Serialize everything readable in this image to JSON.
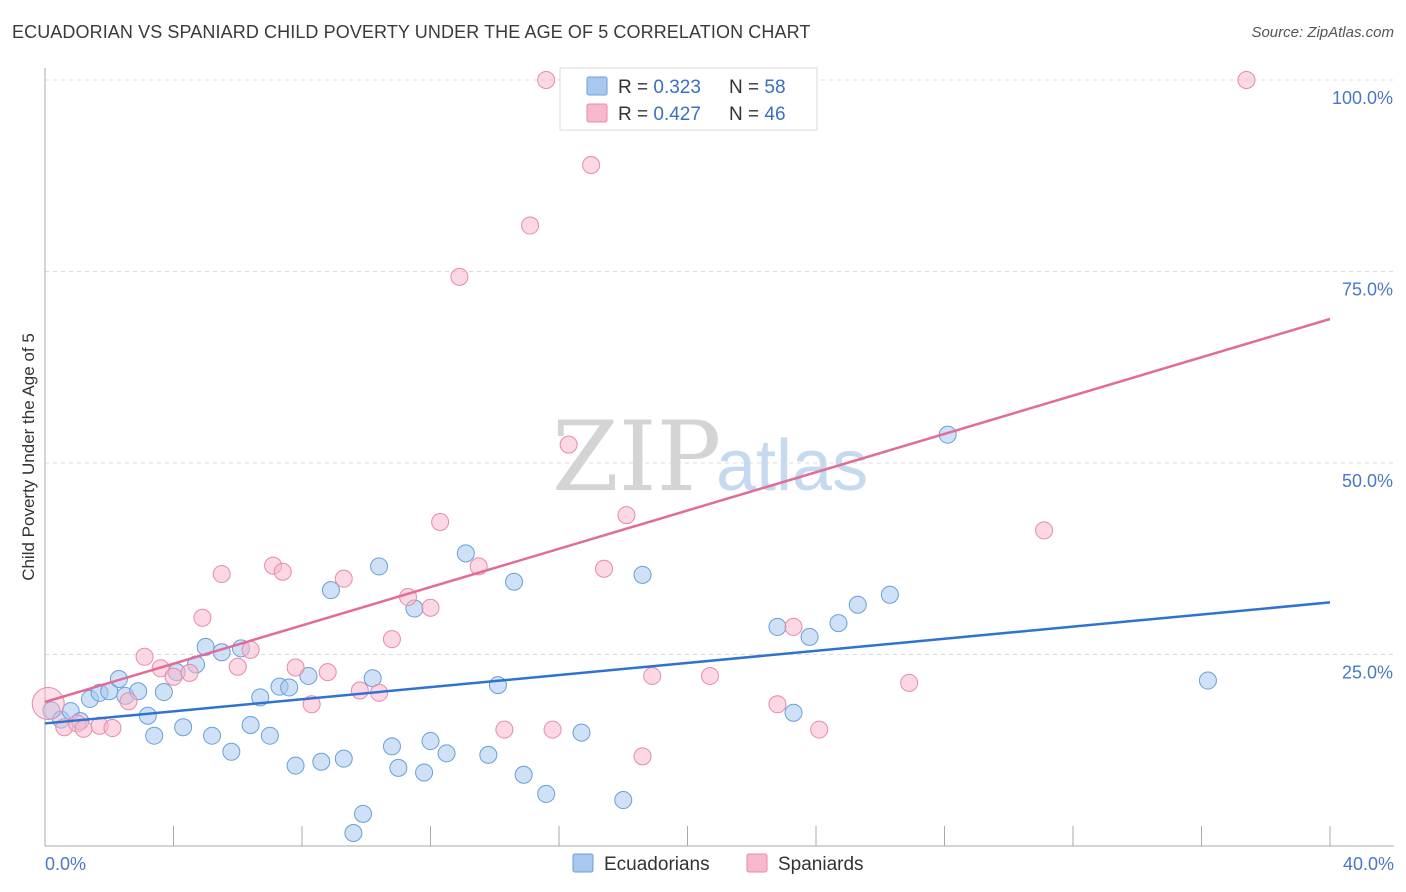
{
  "header": {
    "title": "ECUADORIAN VS SPANIARD CHILD POVERTY UNDER THE AGE OF 5 CORRELATION CHART",
    "source": "Source: ZipAtlas.com"
  },
  "watermark": {
    "zip": "ZIP",
    "atlas": "atlas"
  },
  "colors": {
    "ecuadorians_fill": "#a8c8f0",
    "ecuadorians_stroke": "#6a9ed8",
    "ecuadorians_line": "#2f72cf",
    "spaniards_fill": "#f7b8cc",
    "spaniards_stroke": "#e88aa8",
    "spaniards_line": "#e06c97"
  },
  "legend": {
    "rows": [
      {
        "r_label": "R = ",
        "r_value": "0.323",
        "n_label": "N = ",
        "n_value": "58"
      },
      {
        "r_label": "R = ",
        "r_value": "0.427",
        "n_label": "N = ",
        "n_value": "46"
      }
    ]
  },
  "chart_data": {
    "type": "scatter",
    "title": "ECUADORIAN VS SPANIARD CHILD POVERTY UNDER THE AGE OF 5 CORRELATION CHART",
    "xlabel": "",
    "ylabel": "Child Poverty Under the Age of 5",
    "xlim": [
      0,
      40
    ],
    "ylim": [
      0,
      100
    ],
    "x_tick_labels": [
      "0.0%",
      "40.0%"
    ],
    "y_ticks": [
      25,
      50,
      75,
      100
    ],
    "y_tick_labels": [
      "25.0%",
      "50.0%",
      "75.0%",
      "100.0%"
    ],
    "grid": true,
    "legend_position": "bottom-center",
    "series": [
      {
        "name": "Ecuadorians",
        "r": 0.323,
        "n": 58,
        "trend": {
          "x": [
            0,
            40
          ],
          "y": [
            16.0,
            31.8
          ]
        },
        "points": [
          [
            0.2,
            17.7
          ],
          [
            0.5,
            16.5
          ],
          [
            0.8,
            17.6
          ],
          [
            1.1,
            16.3
          ],
          [
            1.4,
            19.2
          ],
          [
            1.7,
            20.0
          ],
          [
            2.0,
            20.2
          ],
          [
            2.3,
            21.8
          ],
          [
            2.5,
            19.6
          ],
          [
            2.9,
            20.2
          ],
          [
            3.2,
            17.0
          ],
          [
            3.4,
            14.4
          ],
          [
            3.7,
            20.1
          ],
          [
            4.1,
            22.7
          ],
          [
            4.3,
            15.5
          ],
          [
            4.7,
            23.7
          ],
          [
            5.0,
            26.0
          ],
          [
            5.2,
            14.4
          ],
          [
            5.5,
            25.3
          ],
          [
            5.8,
            12.3
          ],
          [
            6.1,
            25.8
          ],
          [
            6.4,
            15.8
          ],
          [
            6.7,
            19.4
          ],
          [
            7.0,
            14.4
          ],
          [
            7.3,
            20.8
          ],
          [
            7.6,
            20.7
          ],
          [
            7.8,
            10.5
          ],
          [
            8.2,
            22.2
          ],
          [
            8.6,
            11.0
          ],
          [
            8.9,
            33.4
          ],
          [
            9.3,
            11.4
          ],
          [
            9.6,
            1.7
          ],
          [
            9.9,
            4.2
          ],
          [
            10.2,
            21.9
          ],
          [
            10.4,
            36.5
          ],
          [
            10.8,
            13.0
          ],
          [
            11.0,
            10.2
          ],
          [
            11.5,
            31.0
          ],
          [
            11.8,
            9.6
          ],
          [
            12.0,
            13.7
          ],
          [
            12.5,
            12.1
          ],
          [
            13.1,
            38.2
          ],
          [
            13.8,
            11.9
          ],
          [
            14.1,
            21.0
          ],
          [
            14.6,
            34.5
          ],
          [
            14.9,
            9.3
          ],
          [
            15.6,
            6.8
          ],
          [
            16.7,
            14.8
          ],
          [
            18.0,
            6.0
          ],
          [
            18.6,
            35.4
          ],
          [
            22.8,
            28.6
          ],
          [
            23.3,
            17.4
          ],
          [
            23.8,
            27.3
          ],
          [
            24.7,
            29.1
          ],
          [
            25.3,
            31.5
          ],
          [
            26.3,
            32.8
          ],
          [
            28.1,
            53.7
          ],
          [
            36.2,
            21.6
          ]
        ]
      },
      {
        "name": "Spaniards",
        "r": 0.427,
        "n": 46,
        "trend": {
          "x": [
            0,
            40
          ],
          "y": [
            18.8,
            68.8
          ]
        },
        "points": [
          [
            0.1,
            18.6
          ],
          [
            0.6,
            15.5
          ],
          [
            1.0,
            16.0
          ],
          [
            1.2,
            15.3
          ],
          [
            1.7,
            15.7
          ],
          [
            2.1,
            15.4
          ],
          [
            2.6,
            18.9
          ],
          [
            3.1,
            24.7
          ],
          [
            3.6,
            23.2
          ],
          [
            4.0,
            22.1
          ],
          [
            4.5,
            22.6
          ],
          [
            4.9,
            29.8
          ],
          [
            5.5,
            35.5
          ],
          [
            6.0,
            23.4
          ],
          [
            6.4,
            25.6
          ],
          [
            7.1,
            36.6
          ],
          [
            7.4,
            35.8
          ],
          [
            7.8,
            23.3
          ],
          [
            8.3,
            18.5
          ],
          [
            8.8,
            22.7
          ],
          [
            9.3,
            34.9
          ],
          [
            9.8,
            20.3
          ],
          [
            10.4,
            20.0
          ],
          [
            10.8,
            27.0
          ],
          [
            11.3,
            32.5
          ],
          [
            12.0,
            31.1
          ],
          [
            12.3,
            42.3
          ],
          [
            12.9,
            74.3
          ],
          [
            13.5,
            36.5
          ],
          [
            14.3,
            15.2
          ],
          [
            15.1,
            81.0
          ],
          [
            15.6,
            100.0
          ],
          [
            15.8,
            15.2
          ],
          [
            16.3,
            52.4
          ],
          [
            17.0,
            88.9
          ],
          [
            17.4,
            36.2
          ],
          [
            18.1,
            43.2
          ],
          [
            18.6,
            11.7
          ],
          [
            18.9,
            22.2
          ],
          [
            20.7,
            22.2
          ],
          [
            22.8,
            18.5
          ],
          [
            23.3,
            28.6
          ],
          [
            24.1,
            15.2
          ],
          [
            26.9,
            21.3
          ],
          [
            31.1,
            41.2
          ],
          [
            37.4,
            100.0
          ]
        ]
      }
    ]
  }
}
